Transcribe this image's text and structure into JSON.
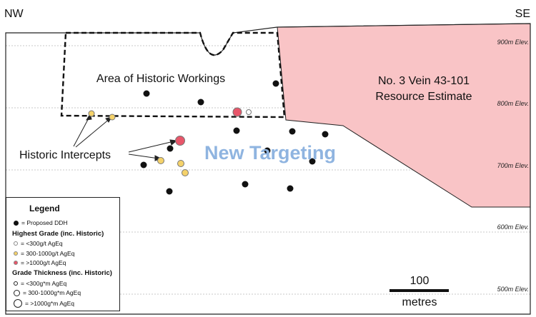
{
  "orientation": {
    "left": "NW",
    "right": "SE"
  },
  "elevations": [
    "900m Elev.",
    "800m Elev.",
    "700m Elev.",
    "600m Elev.",
    "500m Elev."
  ],
  "labels": {
    "historic_workings": "Area of Historic Workings",
    "resource_line1": "No. 3 Vein 43-101",
    "resource_line2": "Resource Estimate",
    "historic_intercepts": "Historic Intercepts",
    "new_targeting": "New Targeting"
  },
  "scale_bar": {
    "value": "100",
    "unit": "metres"
  },
  "legend": {
    "title": "Legend",
    "proposed": "= Proposed DDH",
    "grade_heading": "Highest Grade (inc. Historic)",
    "grade_items": [
      "= <300g/t AgEq",
      "= 300-1000g/t AgEq",
      "= >1000g/t AgEq"
    ],
    "thickness_heading": "Grade Thickness (inc. Historic)",
    "thickness_items": [
      "= <300g*m AgEq",
      "= 300-1000g*m AgEq",
      "= >1000g*m AgEq"
    ]
  },
  "colors": {
    "resource_fill": "#f9c4c6",
    "low_grade": "#ffffff",
    "mid_grade": "#f5d26a",
    "high_grade": "#e8566a",
    "new_targeting_text": "#8fb4e0",
    "proposed_ddh": "#111111"
  }
}
